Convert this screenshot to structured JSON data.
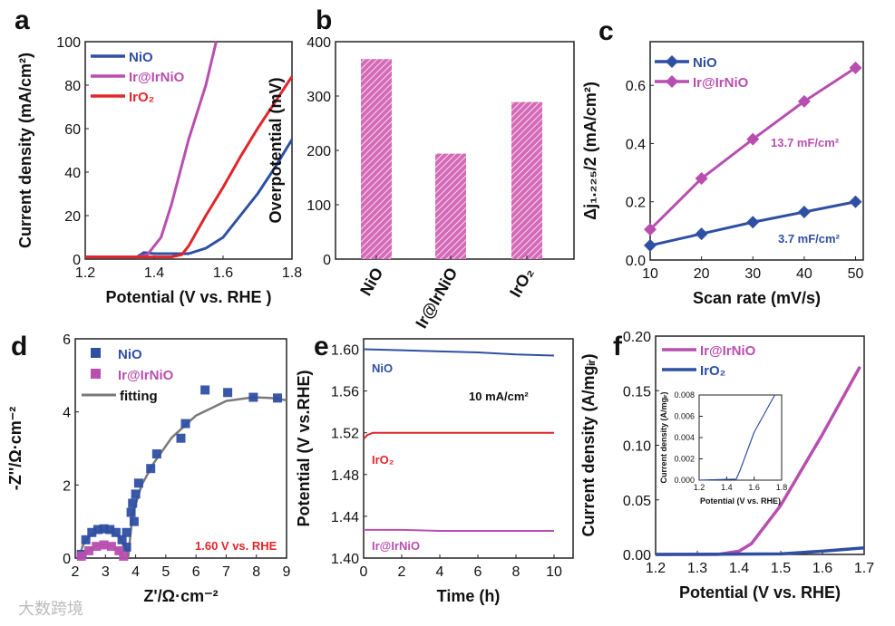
{
  "colors": {
    "blue": "#2f4fa3",
    "pink": "#b84fb0",
    "red": "#e0262a",
    "gray": "#7a7a7a",
    "bar": "#d46ab8"
  },
  "watermark": "大数跨境",
  "chart_data": [
    {
      "panel": "a",
      "type": "line",
      "xlabel": "Potential (V vs. RHE )",
      "ylabel": "Current density (mA/cm²)",
      "xlim": [
        1.2,
        1.8
      ],
      "ylim": [
        0,
        100
      ],
      "xticks": [
        "1.2",
        "1.4",
        "1.6",
        "1.8"
      ],
      "yticks": [
        "0",
        "20",
        "40",
        "60",
        "80",
        "100"
      ],
      "series": [
        {
          "name": "NiO",
          "color": "blue",
          "x": [
            1.2,
            1.35,
            1.37,
            1.4,
            1.5,
            1.55,
            1.6,
            1.65,
            1.7,
            1.75,
            1.8
          ],
          "y": [
            1,
            1,
            3,
            2.5,
            2.5,
            5,
            10,
            20,
            30,
            42,
            55
          ]
        },
        {
          "name": "Ir@IrNiO",
          "color": "pink",
          "x": [
            1.2,
            1.35,
            1.38,
            1.42,
            1.45,
            1.5,
            1.55,
            1.58
          ],
          "y": [
            1,
            1,
            2,
            10,
            25,
            55,
            80,
            100
          ]
        },
        {
          "name": "IrO₂",
          "color": "red",
          "x": [
            1.2,
            1.45,
            1.48,
            1.5,
            1.55,
            1.6,
            1.65,
            1.7,
            1.75,
            1.8
          ],
          "y": [
            1,
            1,
            2,
            6,
            20,
            33,
            47,
            60,
            72,
            84
          ]
        }
      ]
    },
    {
      "panel": "b",
      "type": "bar",
      "ylabel": "Overpotential (mV)",
      "ylim": [
        0,
        400
      ],
      "yticks": [
        "0",
        "100",
        "200",
        "300",
        "400"
      ],
      "categories": [
        "NiO",
        "Ir@IrNiO",
        "IrO₂"
      ],
      "values": [
        368,
        194,
        289
      ]
    },
    {
      "panel": "c",
      "type": "line",
      "xlabel": "Scan rate (mV/s)",
      "ylabel": "Δj₁.₂₂₅/2 (mA/cm²)",
      "xlim": [
        10,
        51.5
      ],
      "ylim": [
        0,
        0.75
      ],
      "xticks": [
        "10",
        "20",
        "30",
        "40",
        "50"
      ],
      "yticks": [
        "0.0",
        "0.2",
        "0.4",
        "0.6"
      ],
      "series": [
        {
          "name": "NiO",
          "color": "blue",
          "x": [
            10,
            20,
            30,
            40,
            50
          ],
          "y": [
            0.05,
            0.09,
            0.13,
            0.165,
            0.2
          ]
        },
        {
          "name": "Ir@IrNiO",
          "color": "pink",
          "x": [
            10,
            20,
            30,
            40,
            50
          ],
          "y": [
            0.105,
            0.28,
            0.415,
            0.545,
            0.66
          ]
        }
      ],
      "annotations": [
        "13.7 mF/cm²",
        "3.7 mF/cm²"
      ]
    },
    {
      "panel": "d",
      "type": "scatter",
      "xlabel": "Z'/Ω·cm⁻²",
      "ylabel": "-Z''/Ω·cm⁻²",
      "xlim": [
        2,
        9
      ],
      "ylim": [
        0,
        6
      ],
      "xticks": [
        "2",
        "3",
        "4",
        "5",
        "6",
        "7",
        "8",
        "9"
      ],
      "yticks": [
        "0",
        "2",
        "4",
        "6"
      ],
      "series": [
        {
          "name": "NiO",
          "color": "blue",
          "x": [
            2.2,
            2.35,
            2.55,
            2.75,
            2.95,
            3.15,
            3.35,
            3.55,
            3.7,
            3.7,
            3.85,
            3.95,
            3.9,
            4.0,
            4.1,
            4.5,
            4.7,
            5.5,
            5.65,
            6.3,
            7.05,
            7.9,
            8.7
          ],
          "y": [
            0.1,
            0.5,
            0.7,
            0.78,
            0.8,
            0.78,
            0.7,
            0.5,
            0.7,
            0.3,
            1.25,
            1.0,
            1.5,
            1.75,
            2.05,
            2.45,
            2.85,
            3.28,
            3.68,
            4.6,
            4.53,
            4.4,
            4.38
          ]
        },
        {
          "name": "Ir@IrNiO",
          "color": "pink",
          "x": [
            2.2,
            2.45,
            2.7,
            2.95,
            3.2,
            3.45,
            3.6
          ],
          "y": [
            0.05,
            0.2,
            0.32,
            0.36,
            0.32,
            0.2,
            0.05
          ]
        },
        {
          "name": "fitting",
          "color": "gray",
          "x": [
            3.75,
            3.9,
            4.2,
            4.6,
            5.2,
            6.0,
            7.0,
            7.9,
            8.5,
            9.0
          ],
          "y": [
            0,
            1.2,
            2.0,
            2.6,
            3.3,
            3.9,
            4.3,
            4.4,
            4.38,
            4.32
          ]
        }
      ],
      "annotations": [
        "1.60 V vs. RHE"
      ]
    },
    {
      "panel": "e",
      "type": "line",
      "xlabel": "Time (h)",
      "ylabel": "Potential (V vs.RHE)",
      "xlim": [
        0,
        11
      ],
      "ylim": [
        1.4,
        1.61
      ],
      "xticks": [
        "0",
        "2",
        "4",
        "6",
        "8",
        "10"
      ],
      "yticks": [
        "1.40",
        "1.44",
        "1.48",
        "1.52",
        "1.56",
        "1.60"
      ],
      "series": [
        {
          "name": "NiO",
          "color": "blue",
          "x": [
            0,
            2,
            4,
            6,
            8,
            10
          ],
          "y": [
            1.6,
            1.599,
            1.598,
            1.597,
            1.595,
            1.594
          ]
        },
        {
          "name": "IrO₂",
          "color": "red",
          "x": [
            0,
            0.2,
            0.5,
            2,
            5,
            8,
            10
          ],
          "y": [
            1.514,
            1.518,
            1.52,
            1.52,
            1.52,
            1.52,
            1.52
          ]
        },
        {
          "name": "Ir@IrNiO",
          "color": "pink",
          "x": [
            0,
            2,
            4,
            6,
            8,
            10
          ],
          "y": [
            1.427,
            1.427,
            1.426,
            1.426,
            1.426,
            1.426
          ]
        }
      ],
      "annotations": [
        "10 mA/cm²"
      ]
    },
    {
      "panel": "f",
      "type": "line",
      "xlabel": "Potential (V vs. RHE)",
      "ylabel": "Current density (A/mgᵢᵣ)",
      "xlim": [
        1.2,
        1.7
      ],
      "ylim": [
        0,
        0.2
      ],
      "xticks": [
        "1.2",
        "1.3",
        "1.4",
        "1.5",
        "1.6",
        "1.7"
      ],
      "yticks": [
        "0.00",
        "0.05",
        "0.10",
        "0.15",
        "0.20"
      ],
      "series": [
        {
          "name": "Ir@IrNiO",
          "color": "pink",
          "x": [
            1.2,
            1.35,
            1.4,
            1.43,
            1.5,
            1.6,
            1.69
          ],
          "y": [
            0,
            0,
            0.003,
            0.01,
            0.045,
            0.11,
            0.172
          ]
        },
        {
          "name": "IrO₂",
          "color": "blue",
          "x": [
            1.2,
            1.5,
            1.6,
            1.7
          ],
          "y": [
            0,
            0.0005,
            0.003,
            0.006
          ]
        }
      ],
      "inset": {
        "xlabel": "Potential (V vs. RHE)",
        "ylabel": "Current density (A/mgᵢᵣ)",
        "xlim": [
          1.2,
          1.8
        ],
        "ylim": [
          0,
          0.008
        ],
        "xticks": [
          "1.2",
          "1.4",
          "1.6",
          "1.8"
        ],
        "yticks": [
          "0.000",
          "0.002",
          "0.004",
          "0.006",
          "0.008"
        ],
        "series": [
          {
            "name": "IrO₂",
            "color": "blue",
            "x": [
              1.2,
              1.47,
              1.5,
              1.6,
              1.75
            ],
            "y": [
              0,
              0.0001,
              0.001,
              0.0045,
              0.008
            ]
          }
        ]
      }
    }
  ]
}
